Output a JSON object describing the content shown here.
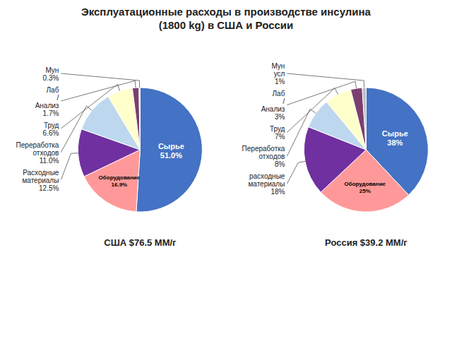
{
  "title": "Эксплуатационные расходы в производстве инсулина\n(1800 kg) в США и России",
  "chart_data": [
    {
      "type": "pie",
      "title": "США $76.5 ММ/г",
      "categories": [
        "Сырье",
        "Оборудование",
        "Расходные\nматериалы",
        "Переработка\nотходов",
        "Труд",
        "Лаб\n/\nАнализ",
        "Мун"
      ],
      "values": [
        51.0,
        16.9,
        12.5,
        11.0,
        6.6,
        1.7,
        0.3
      ],
      "value_labels": [
        "51.0%",
        "16.9%",
        "12.5%",
        "11.0%",
        "6.6%",
        "1.7%",
        "0.3%"
      ],
      "colors": [
        "#4472C4",
        "#FF9999",
        "#7030A0",
        "#BDD7EE",
        "#FFFFCC",
        "#7B3F6E",
        "#C0C0C0"
      ]
    },
    {
      "type": "pie",
      "title": "Россия $39.2 ММ/г",
      "categories": [
        "Сырье",
        "Оборудование",
        "расходные\nматериалы",
        "Переработка\nотходов",
        "Труд",
        "Лаб\n/\nАнализ",
        "Мун\nусл"
      ],
      "values": [
        38.0,
        25.0,
        18.0,
        8.0,
        7.0,
        3.0,
        1.0
      ],
      "value_labels": [
        "38%",
        "25%",
        "18%",
        "8%",
        "7%",
        "3%",
        "1%"
      ],
      "colors": [
        "#4472C4",
        "#FF9999",
        "#7030A0",
        "#BDD7EE",
        "#FFFFCC",
        "#7B3F6E",
        "#C0C0C0"
      ]
    }
  ]
}
